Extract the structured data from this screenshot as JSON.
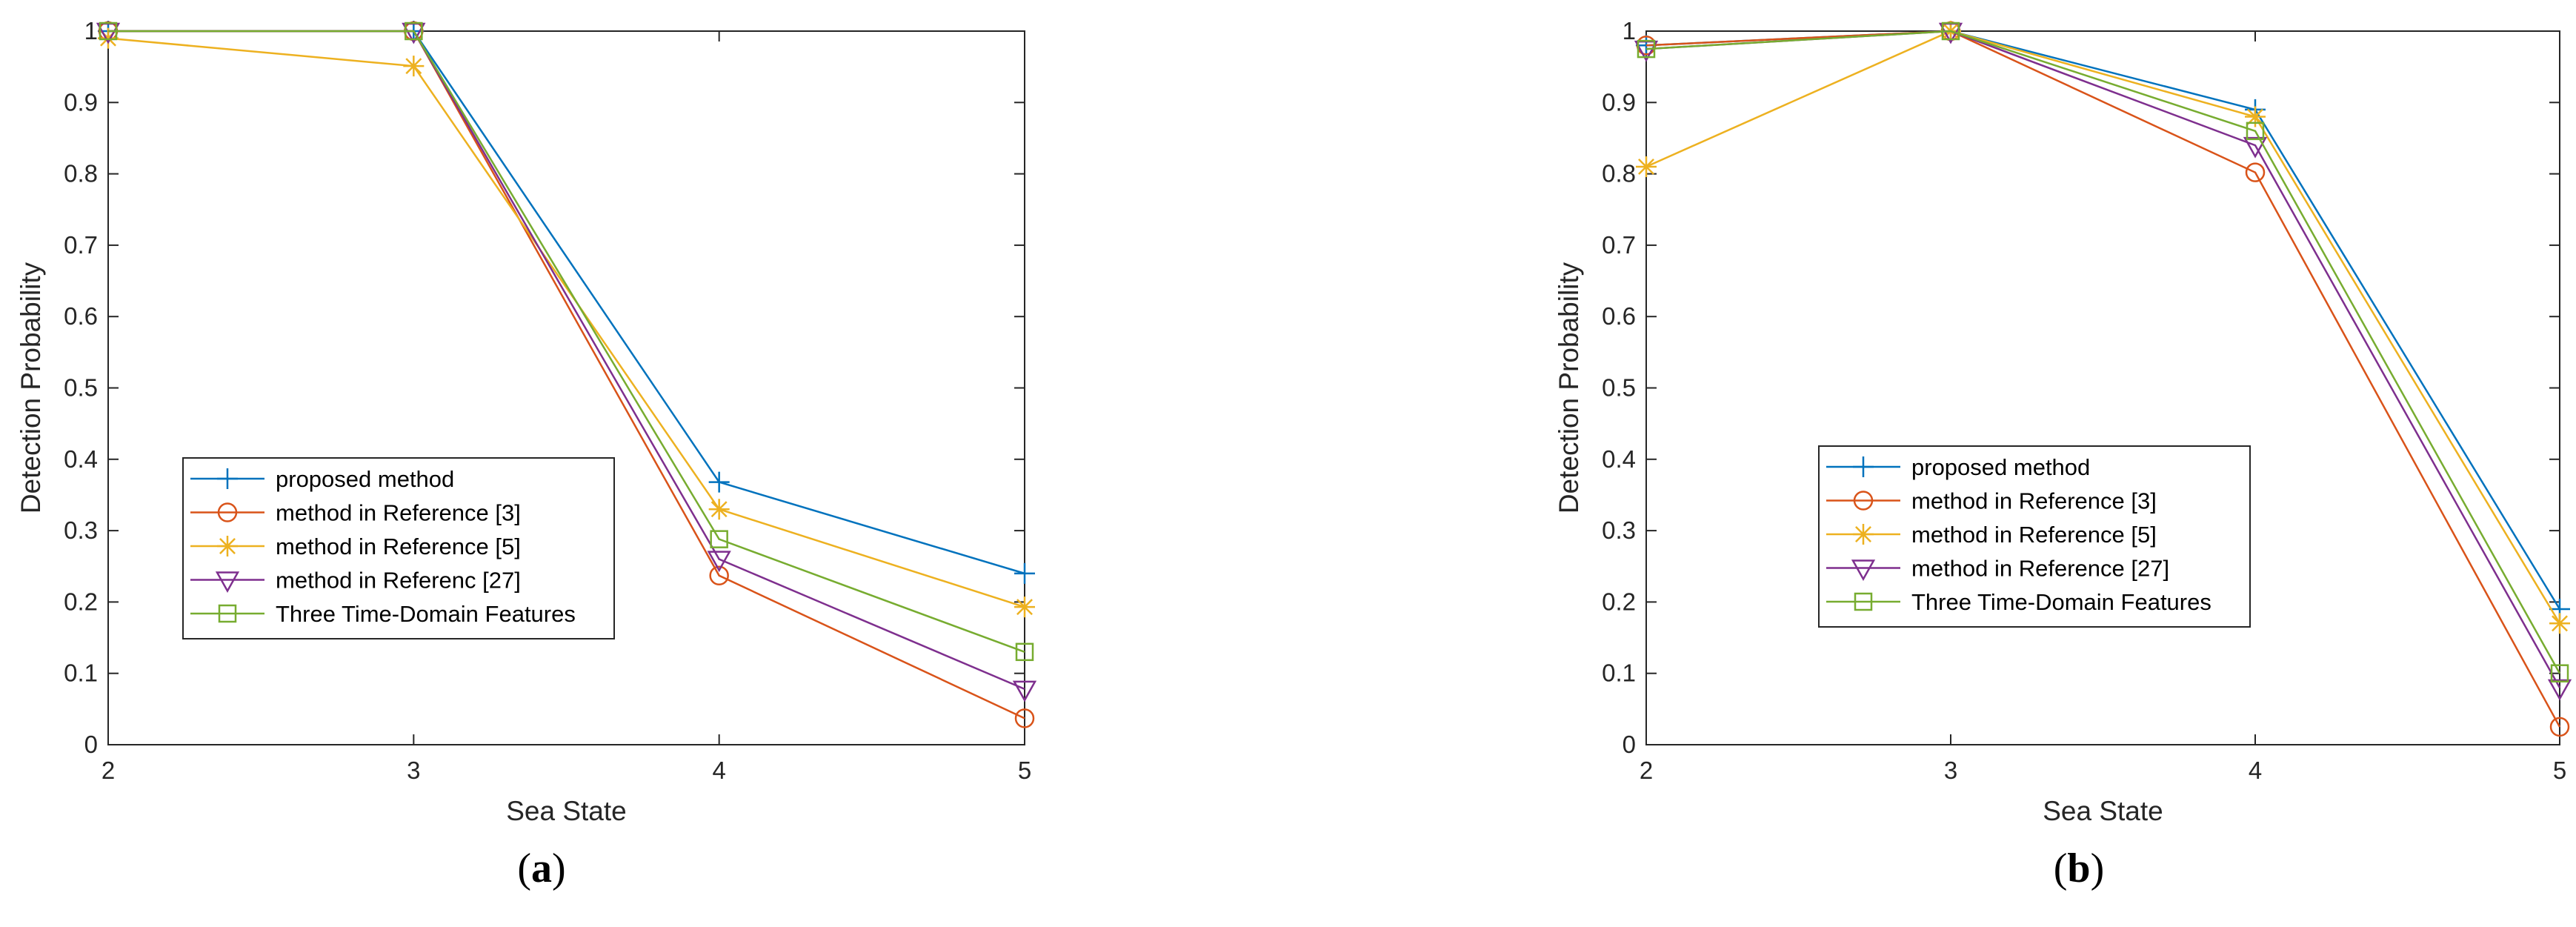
{
  "colors": {
    "series": [
      "#0072BD",
      "#D95319",
      "#EDB120",
      "#7E2F8E",
      "#77AC30"
    ],
    "axis": "#262626",
    "legend_border": "#262626"
  },
  "chart_data": [
    {
      "type": "line",
      "caption_letter": "a",
      "xlabel": "Sea State",
      "ylabel": "Detection Probability",
      "xlim": [
        2,
        5
      ],
      "ylim": [
        0,
        1
      ],
      "xticks": [
        "2",
        "3",
        "4",
        "5"
      ],
      "yticks": [
        "0",
        "0.1",
        "0.2",
        "0.3",
        "0.4",
        "0.5",
        "0.6",
        "0.7",
        "0.8",
        "0.9",
        "1"
      ],
      "grid": false,
      "legend_position": "lower-left",
      "x": [
        2,
        3,
        4,
        5
      ],
      "series": [
        {
          "name": "proposed method",
          "marker": "plus",
          "values": [
            1.0,
            1.0,
            0.368,
            0.24
          ]
        },
        {
          "name": "method in Reference [3]",
          "marker": "circle",
          "values": [
            1.0,
            1.0,
            0.237,
            0.037
          ]
        },
        {
          "name": "method in Reference [5]",
          "marker": "asterisk",
          "values": [
            0.99,
            0.951,
            0.33,
            0.193
          ]
        },
        {
          "name": "method in Referenc   [27]",
          "marker": "triangle-down",
          "values": [
            1.0,
            1.0,
            0.26,
            0.078
          ]
        },
        {
          "name": "Three Time-Domain Features",
          "marker": "square",
          "values": [
            1.0,
            1.0,
            0.288,
            0.13
          ]
        }
      ]
    },
    {
      "type": "line",
      "caption_letter": "b",
      "xlabel": "Sea State",
      "ylabel": "Detection Probability",
      "xlim": [
        2,
        5
      ],
      "ylim": [
        0,
        1
      ],
      "xticks": [
        "2",
        "3",
        "4",
        "5"
      ],
      "yticks": [
        "0",
        "0.1",
        "0.2",
        "0.3",
        "0.4",
        "0.5",
        "0.6",
        "0.7",
        "0.8",
        "0.9",
        "1"
      ],
      "grid": false,
      "legend_position": "lower-left",
      "x": [
        2,
        3,
        4,
        5
      ],
      "series": [
        {
          "name": "proposed method",
          "marker": "plus",
          "values": [
            0.98,
            1.0,
            0.89,
            0.19
          ]
        },
        {
          "name": "method in Reference [3]",
          "marker": "circle",
          "values": [
            0.98,
            1.0,
            0.802,
            0.025
          ]
        },
        {
          "name": "method in Reference [5]",
          "marker": "asterisk",
          "values": [
            0.81,
            1.0,
            0.88,
            0.17
          ]
        },
        {
          "name": "method in Reference   [27]",
          "marker": "triangle-down",
          "values": [
            0.975,
            1.0,
            0.84,
            0.08
          ]
        },
        {
          "name": "Three Time-Domain Features",
          "marker": "square",
          "values": [
            0.975,
            1.0,
            0.86,
            0.1
          ]
        }
      ]
    }
  ]
}
